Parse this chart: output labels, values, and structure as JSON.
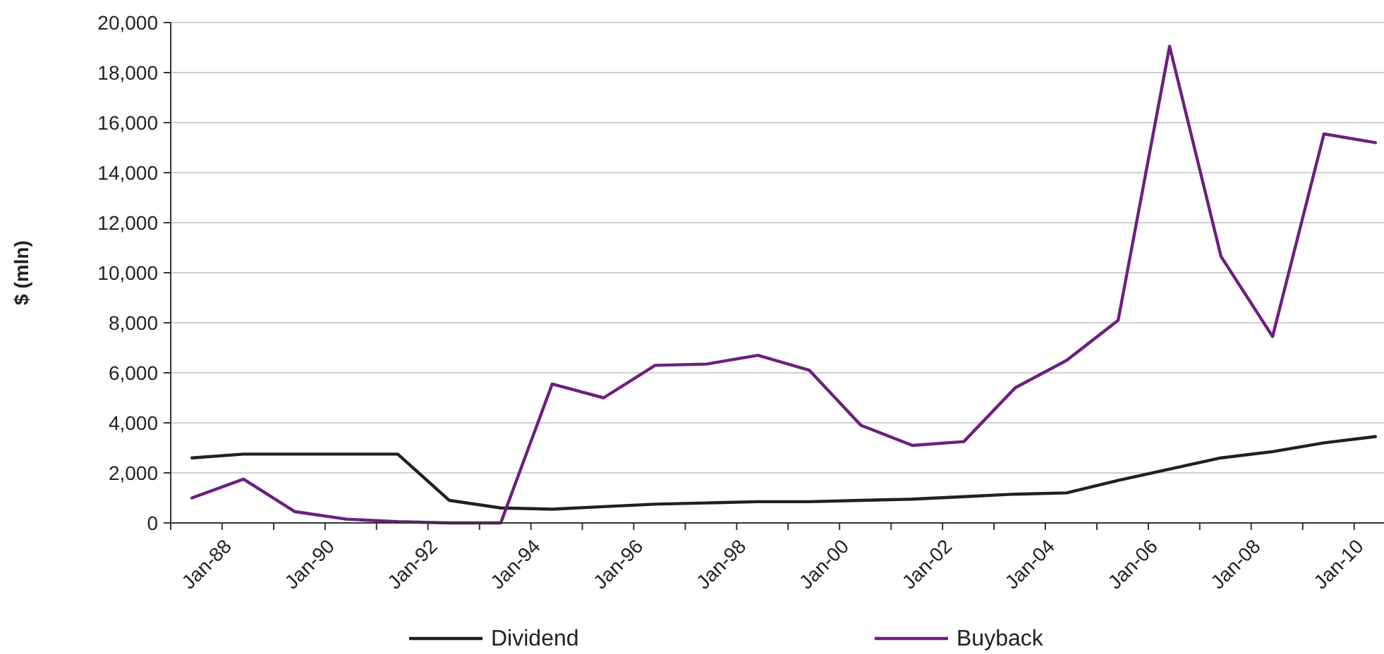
{
  "chart_data": {
    "type": "line",
    "ylabel": "$ (mln)",
    "x": [
      "1987-06",
      "1988-06",
      "1989-06",
      "1990-06",
      "1991-06",
      "1992-06",
      "1993-06",
      "1994-06",
      "1995-06",
      "1996-06",
      "1997-06",
      "1998-06",
      "1999-06",
      "2000-06",
      "2001-06",
      "2002-06",
      "2003-06",
      "2004-06",
      "2005-06",
      "2006-06",
      "2007-06",
      "2008-06",
      "2009-06",
      "2010-06"
    ],
    "series": [
      {
        "name": "Dividend",
        "color": "#231f20",
        "values": [
          2600,
          2750,
          2750,
          2750,
          2750,
          900,
          600,
          550,
          650,
          750,
          800,
          850,
          850,
          900,
          950,
          1050,
          1150,
          1200,
          1700,
          2150,
          2600,
          2850,
          3200,
          3450
        ]
      },
      {
        "name": "Buyback",
        "color": "#6d1f7e",
        "values": [
          1000,
          1750,
          450,
          150,
          50,
          0,
          0,
          5550,
          5000,
          6300,
          6350,
          6700,
          6100,
          3900,
          3100,
          3250,
          5400,
          6500,
          8100,
          19050,
          10650,
          7450,
          15550,
          15200
        ]
      }
    ],
    "xlim": [
      "1987-01",
      "2010-08"
    ],
    "xticks": [
      {
        "value": "1987-01",
        "label": null
      },
      {
        "value": "1988-01",
        "label": "Jan-88"
      },
      {
        "value": "1989-01",
        "label": null
      },
      {
        "value": "1990-01",
        "label": "Jan-90"
      },
      {
        "value": "1991-01",
        "label": null
      },
      {
        "value": "1992-01",
        "label": "Jan-92"
      },
      {
        "value": "1993-01",
        "label": null
      },
      {
        "value": "1994-01",
        "label": "Jan-94"
      },
      {
        "value": "1995-01",
        "label": null
      },
      {
        "value": "1996-01",
        "label": "Jan-96"
      },
      {
        "value": "1997-01",
        "label": null
      },
      {
        "value": "1998-01",
        "label": "Jan-98"
      },
      {
        "value": "1999-01",
        "label": null
      },
      {
        "value": "2000-01",
        "label": "Jan-00"
      },
      {
        "value": "2001-01",
        "label": null
      },
      {
        "value": "2002-01",
        "label": "Jan-02"
      },
      {
        "value": "2003-01",
        "label": null
      },
      {
        "value": "2004-01",
        "label": "Jan-04"
      },
      {
        "value": "2005-01",
        "label": null
      },
      {
        "value": "2006-01",
        "label": "Jan-06"
      },
      {
        "value": "2007-01",
        "label": null
      },
      {
        "value": "2008-01",
        "label": "Jan-08"
      },
      {
        "value": "2009-01",
        "label": null
      },
      {
        "value": "2010-01",
        "label": "Jan-10"
      }
    ],
    "ylim": [
      0,
      20000
    ],
    "yticks": [
      0,
      {
        "value": 2000,
        "label": "2,000"
      },
      {
        "value": 4000,
        "label": "4,000"
      },
      {
        "value": 6000,
        "label": "6,000"
      },
      {
        "value": 8000,
        "label": "8,000"
      },
      {
        "value": 10000,
        "label": "10,000"
      },
      {
        "value": 12000,
        "label": "12,000"
      },
      {
        "value": 14000,
        "label": "14,000"
      },
      {
        "value": 16000,
        "label": "16,000"
      },
      {
        "value": 18000,
        "label": "18,000"
      },
      {
        "value": 20000,
        "label": "20,000"
      }
    ],
    "grid": "y",
    "legend": "bottom",
    "marker": "none",
    "line_style": "solid"
  }
}
